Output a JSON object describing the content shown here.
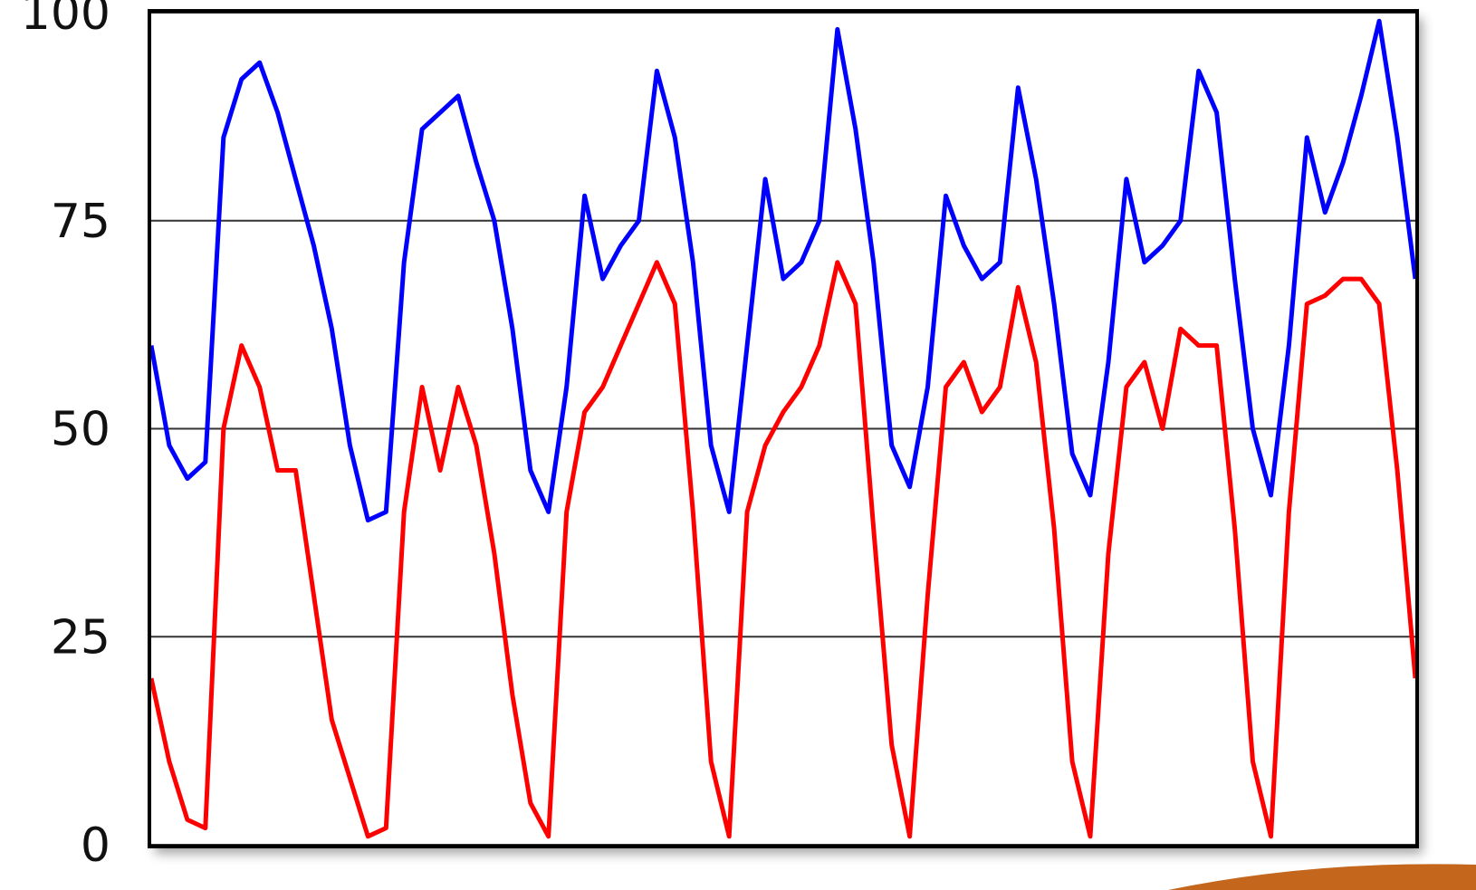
{
  "chart_data": {
    "type": "line",
    "ylim": [
      0,
      100
    ],
    "yticks": [
      0,
      25,
      50,
      75,
      100
    ],
    "grid": true,
    "series": [
      {
        "color": "#0000ff",
        "values": [
          60,
          48,
          44,
          46,
          85,
          92,
          94,
          88,
          80,
          72,
          62,
          48,
          39,
          40,
          70,
          86,
          88,
          90,
          82,
          75,
          62,
          45,
          40,
          55,
          78,
          68,
          72,
          75,
          93,
          85,
          70,
          48,
          40,
          60,
          80,
          68,
          70,
          75,
          98,
          86,
          70,
          48,
          43,
          55,
          78,
          72,
          68,
          70,
          91,
          80,
          65,
          47,
          42,
          58,
          80,
          70,
          72,
          75,
          93,
          88,
          68,
          50,
          42,
          60,
          85,
          76,
          82,
          90,
          99,
          85,
          68
        ]
      },
      {
        "color": "#ff0000",
        "values": [
          20,
          10,
          3,
          2,
          50,
          60,
          55,
          45,
          45,
          30,
          15,
          8,
          1,
          2,
          40,
          55,
          45,
          55,
          48,
          35,
          18,
          5,
          1,
          40,
          52,
          55,
          60,
          65,
          70,
          65,
          40,
          10,
          1,
          40,
          48,
          52,
          55,
          60,
          70,
          65,
          38,
          12,
          1,
          30,
          55,
          58,
          52,
          55,
          67,
          58,
          38,
          10,
          1,
          35,
          55,
          58,
          50,
          62,
          60,
          60,
          38,
          10,
          1,
          40,
          65,
          66,
          68,
          68,
          65,
          45,
          20
        ]
      }
    ]
  }
}
